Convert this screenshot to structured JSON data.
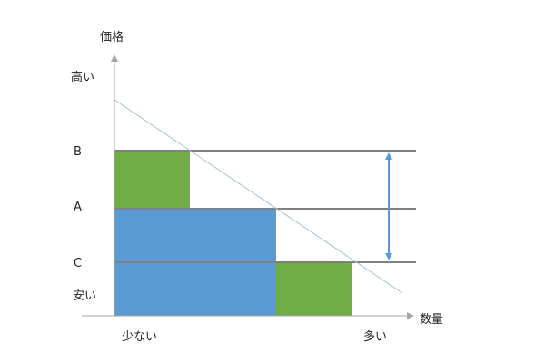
{
  "axes": {
    "y_title": "価格",
    "x_title": "数量",
    "y_high": "高い",
    "y_low": "安い",
    "x_low": "少ない",
    "x_high": "多い"
  },
  "price_levels": {
    "b": "B",
    "a": "A",
    "c": "C"
  },
  "colors": {
    "green": "#70AD47",
    "blue": "#5B9BD5",
    "axis": "#A6A6A6",
    "price_line": "#808080",
    "demand_line": "#9DC3D7",
    "arrow": "#5B9BD5"
  }
}
